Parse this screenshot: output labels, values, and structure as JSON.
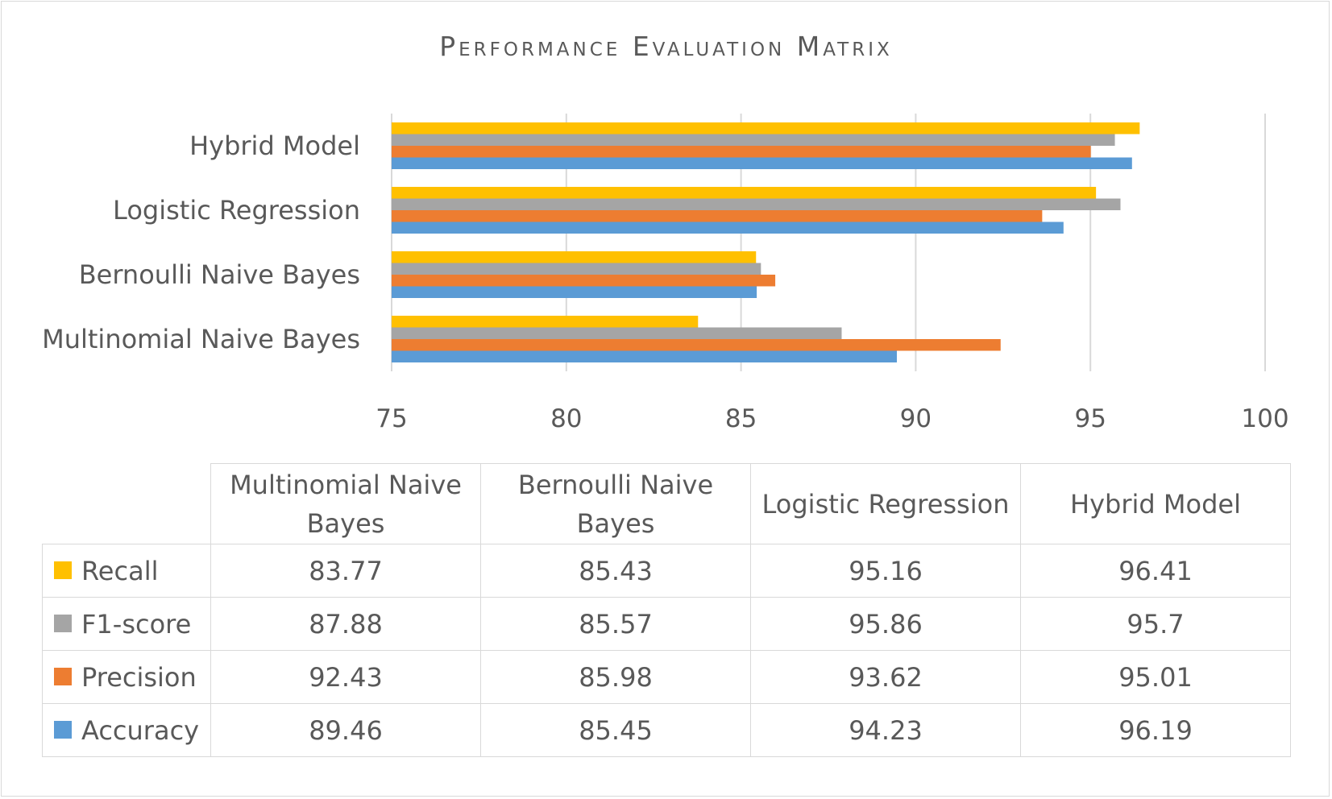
{
  "chart_data": {
    "type": "bar",
    "orientation": "horizontal",
    "title": "Performance Evaluation Matrix",
    "categories": [
      "Multinomial Naive Bayes",
      "Bernoulli Naive Bayes",
      "Logistic Regression",
      "Hybrid Model"
    ],
    "series": [
      {
        "name": "Recall",
        "color": "#ffc000",
        "values": [
          83.77,
          85.43,
          95.16,
          96.41
        ]
      },
      {
        "name": "F1-score",
        "color": "#a5a5a5",
        "values": [
          87.88,
          85.57,
          95.86,
          95.7
        ]
      },
      {
        "name": "Precision",
        "color": "#ed7d31",
        "values": [
          92.43,
          85.98,
          93.62,
          95.01
        ]
      },
      {
        "name": "Accuracy",
        "color": "#5b9bd5",
        "values": [
          89.46,
          85.45,
          94.23,
          96.19
        ]
      }
    ],
    "xlim": [
      75,
      100
    ],
    "xticks": [
      "75",
      "80",
      "85",
      "90",
      "95",
      "100"
    ],
    "grid": true,
    "legend": "data-table-below"
  },
  "table": {
    "headers": [
      "Multinomial Naive Bayes",
      "Bernoulli Naive Bayes",
      "Logistic Regression",
      "Hybrid Model"
    ],
    "rows": [
      {
        "label": "Recall",
        "values": [
          "83.77",
          "85.43",
          "95.16",
          "96.41"
        ]
      },
      {
        "label": "F1-score",
        "values": [
          "87.88",
          "85.57",
          "95.86",
          "95.7"
        ]
      },
      {
        "label": "Precision",
        "values": [
          "92.43",
          "85.98",
          "93.62",
          "95.01"
        ]
      },
      {
        "label": "Accuracy",
        "values": [
          "89.46",
          "85.45",
          "94.23",
          "96.19"
        ]
      }
    ]
  }
}
